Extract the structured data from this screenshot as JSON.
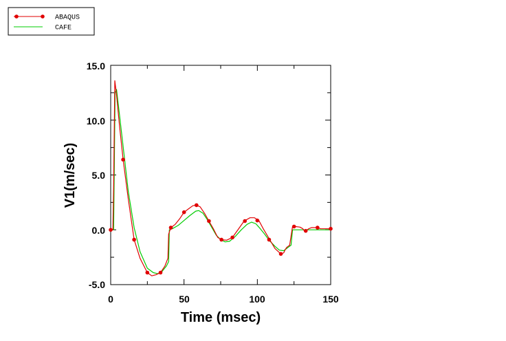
{
  "chart_data": {
    "type": "line",
    "title": "",
    "xlabel": "Time (msec)",
    "ylabel": "V1(m/sec)",
    "xlim": [
      0,
      150
    ],
    "ylim": [
      -5,
      15
    ],
    "x_ticks": [
      "0",
      "50",
      "100",
      "150"
    ],
    "y_ticks": [
      "-5.0",
      "0.0",
      "5.0",
      "10.0",
      "15.0"
    ],
    "grid": false,
    "legend_position": "top-left",
    "series": [
      {
        "name": "ABAQUS",
        "color": "#e00000",
        "markers": true,
        "x": [
          0,
          1.5,
          2,
          2.8,
          4,
          6,
          8.5,
          12,
          16,
          20,
          25,
          28,
          31,
          34,
          37,
          39,
          39.5,
          41,
          44,
          47,
          50,
          53,
          56,
          58.5,
          61,
          64,
          67,
          70,
          73,
          75.5,
          79,
          83,
          87,
          91,
          95,
          98,
          101,
          104,
          108,
          112,
          116,
          118,
          119,
          120,
          122,
          124,
          126,
          129,
          131,
          132,
          133,
          135,
          137,
          140,
          141,
          143,
          146,
          150
        ],
        "y": [
          0,
          0,
          4,
          13.6,
          12.3,
          9.5,
          6.4,
          2.8,
          -0.9,
          -2.6,
          -3.9,
          -4.2,
          -4.1,
          -3.9,
          -3.3,
          -2.6,
          -0.4,
          0.2,
          0.5,
          1,
          1.6,
          1.9,
          2.2,
          2.25,
          2.1,
          1.5,
          0.8,
          0.1,
          -0.7,
          -0.9,
          -0.95,
          -0.7,
          0.05,
          0.8,
          1.1,
          1.1,
          0.85,
          0.1,
          -0.8,
          -1.7,
          -2.2,
          -2.1,
          -1.8,
          -1.6,
          -1.4,
          0.3,
          0.3,
          0.25,
          0.1,
          -0.1,
          -0.1,
          0.1,
          0.2,
          0.2,
          0.2,
          0.1,
          0.1,
          0.1
        ],
        "marker_x": [
          0,
          8.5,
          16,
          25,
          34,
          41,
          50,
          58.5,
          67,
          75.5,
          83,
          91.5,
          100,
          108,
          116,
          125,
          133,
          141,
          150
        ],
        "marker_y": [
          0,
          6.4,
          -0.9,
          -3.9,
          -3.9,
          0.2,
          1.6,
          2.25,
          0.8,
          -0.9,
          -0.7,
          0.8,
          0.85,
          -0.9,
          -2.2,
          0.3,
          -0.1,
          0.2,
          0.1
        ]
      },
      {
        "name": "CAFE",
        "color": "#00cc00",
        "markers": false,
        "x": [
          0,
          2,
          2.5,
          3,
          4,
          6,
          9,
          12,
          16,
          20,
          25,
          29,
          32,
          35,
          38,
          39.5,
          40,
          42,
          46,
          50,
          54,
          58,
          60,
          63,
          66,
          69,
          72,
          75,
          78,
          81,
          85,
          89,
          93,
          96,
          99,
          102,
          105,
          108,
          112,
          115,
          118,
          119,
          120,
          121,
          123,
          124,
          125,
          130,
          135,
          140,
          145,
          150
        ],
        "y": [
          0,
          0,
          6,
          12.5,
          12.8,
          10.5,
          7,
          3.5,
          0.2,
          -2,
          -3.5,
          -3.9,
          -4,
          -3.8,
          -3.3,
          -2.9,
          0,
          0.1,
          0.4,
          0.85,
          1.3,
          1.7,
          1.75,
          1.5,
          0.9,
          0.2,
          -0.5,
          -0.9,
          -1.1,
          -1.05,
          -0.6,
          0,
          0.5,
          0.7,
          0.55,
          0.1,
          -0.4,
          -0.95,
          -1.5,
          -1.85,
          -1.9,
          -1.8,
          -1.7,
          -1.6,
          -1.4,
          0,
          0,
          0,
          0,
          0,
          0,
          0
        ]
      }
    ]
  }
}
